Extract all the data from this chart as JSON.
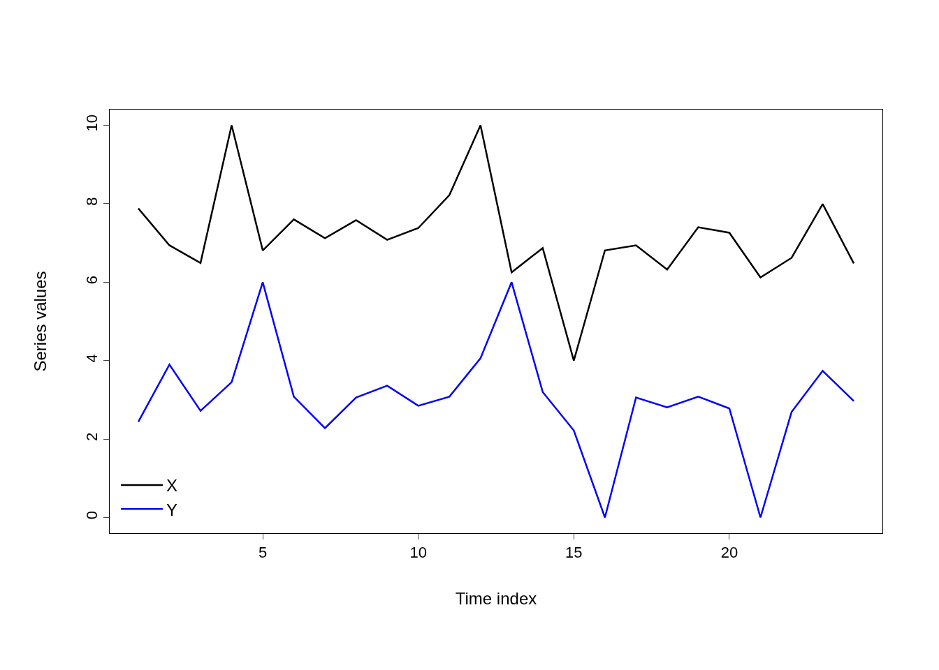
{
  "chart_data": {
    "type": "line",
    "xlabel": "Time index",
    "ylabel": "Series values",
    "x": [
      1,
      2,
      3,
      4,
      5,
      6,
      7,
      8,
      9,
      10,
      11,
      12,
      13,
      14,
      15,
      16,
      17,
      18,
      19,
      20,
      21,
      22,
      23,
      24
    ],
    "series": [
      {
        "name": "X",
        "color": "#000000",
        "values": [
          7.88,
          6.94,
          6.49,
          10,
          6.81,
          7.6,
          7.12,
          7.58,
          7.08,
          7.38,
          8.22,
          10,
          6.25,
          6.87,
          4.0,
          6.81,
          6.94,
          6.32,
          7.4,
          7.26,
          6.12,
          6.62,
          7.99,
          6.48
        ]
      },
      {
        "name": "Y",
        "color": "#0000ff",
        "values": [
          2.44,
          3.9,
          2.72,
          3.45,
          6,
          3.08,
          2.28,
          3.06,
          3.36,
          2.85,
          3.08,
          4.06,
          6,
          3.2,
          2.22,
          0,
          3.06,
          2.81,
          3.08,
          2.78,
          0,
          2.69,
          3.74,
          2.97
        ]
      }
    ],
    "xlim": [
      0.08,
      24.92
    ],
    "ylim": [
      -0.4,
      10.4
    ],
    "xticks": [
      5,
      10,
      15,
      20
    ],
    "yticks": [
      0,
      2,
      4,
      6,
      8,
      10
    ],
    "legend": "bottom left",
    "marker": "none",
    "line_style": "solid"
  }
}
